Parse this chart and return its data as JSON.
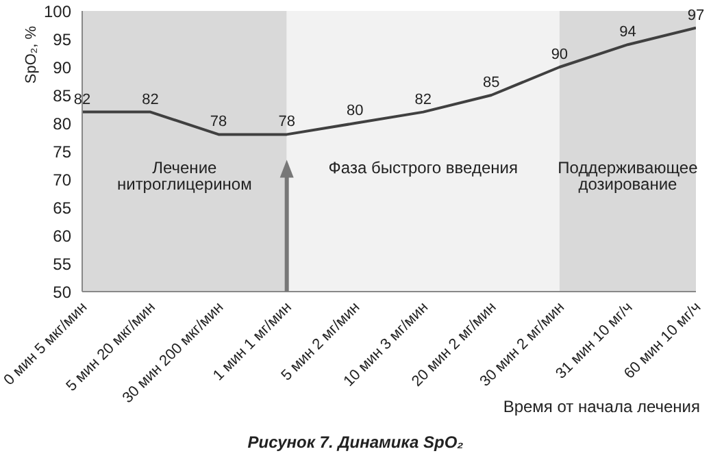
{
  "chart_data": {
    "type": "line",
    "title": "Рисунок 7. Динамика SpO₂",
    "ylabel": "SpO₂, %",
    "xlabel": "Время от начала лечения",
    "categories": [
      "0 мин 5 мкг/мин",
      "5 мин 20 мкг/мин",
      "30 мин 200 мкг/мин",
      "1 мин 1 мг/мин",
      "5 мин 2 мг/мин",
      "10 мин 3 мг/мин",
      "20 мин 2 мг/мин",
      "30 мин 2 мг/мин",
      "31 мин 10 мг/ч",
      "60 мин 10 мг/ч"
    ],
    "series": [
      {
        "color": "#404040",
        "values": [
          82,
          82,
          78,
          78,
          80,
          82,
          85,
          90,
          94,
          97
        ]
      }
    ],
    "ylim": [
      50,
      100
    ],
    "yticks": [
      50,
      55,
      60,
      65,
      70,
      75,
      80,
      85,
      90,
      95,
      100
    ],
    "data_labels": true,
    "marker": "none",
    "line_style": "solid",
    "bands": [
      {
        "axis": "x",
        "from": "0 мин 5 мкг/мин",
        "to": "1 мин 1 мг/мин",
        "label": "Лечение нитроглицерином",
        "color": "#d9d9d9"
      },
      {
        "axis": "x",
        "from": "1 мин 1 мг/мин",
        "to": "30 мин 2 мг/мин",
        "label": "Фаза быстрого введения",
        "color": "#f2f2f2"
      },
      {
        "axis": "x",
        "from": "30 мин 2 мг/мин",
        "to": "60 мин 10 мг/ч",
        "label": "Поддерживающее дозирование",
        "color": "#d9d9d9"
      }
    ]
  }
}
